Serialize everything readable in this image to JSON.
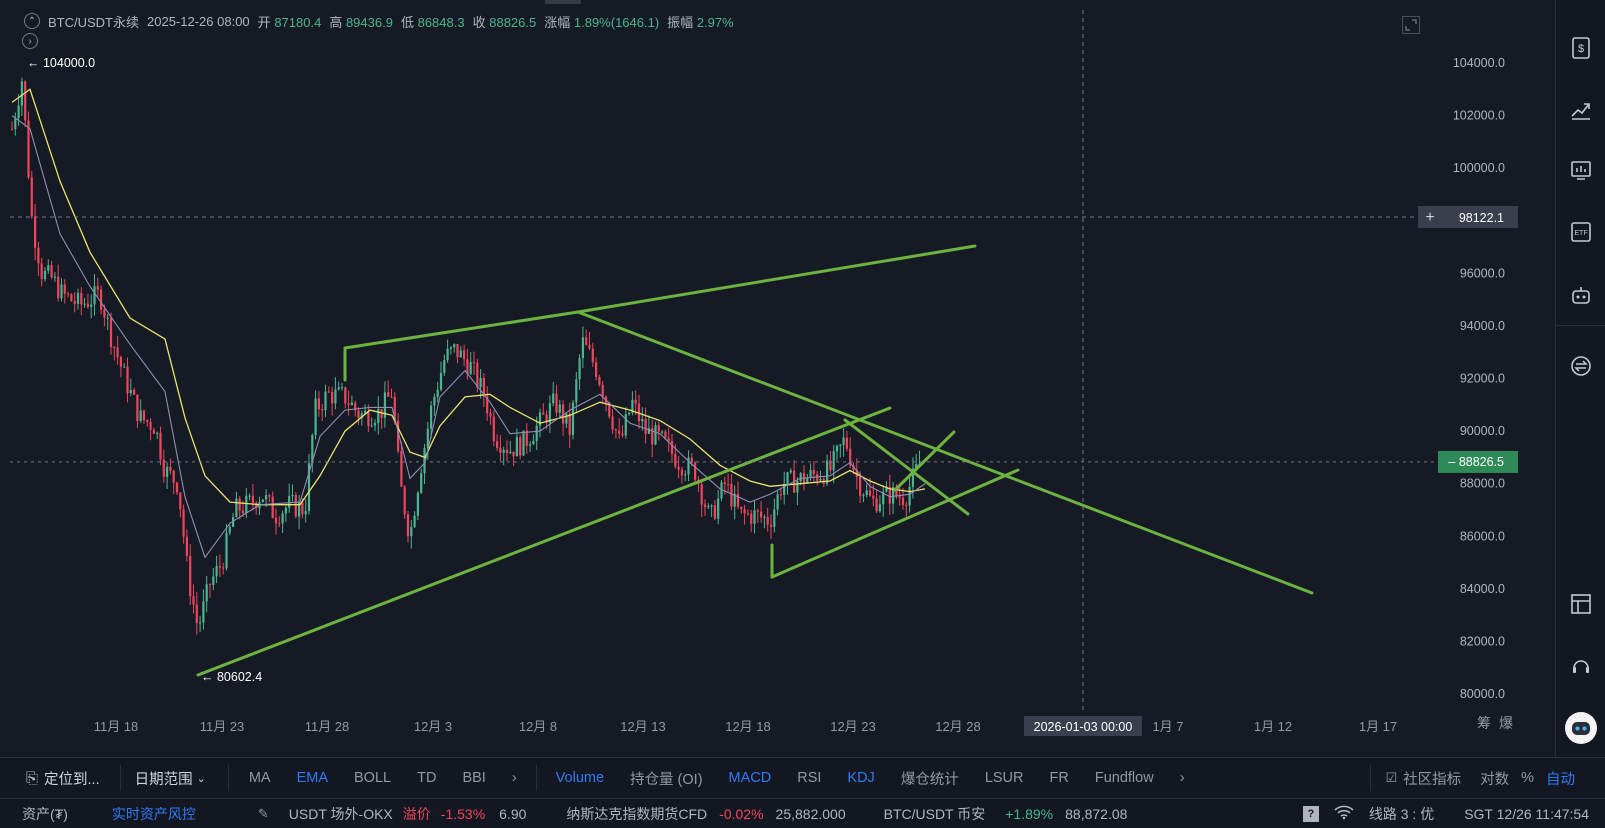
{
  "header": {
    "symbol": "BTC/USDT永续",
    "datetime": "2025-12-26 08:00",
    "open_label": "开",
    "open_value": "87180.4",
    "high_label": "高",
    "high_value": "89436.9",
    "low_label": "低",
    "low_value": "86848.3",
    "close_label": "收",
    "close_value": "88826.5",
    "change_label": "涨幅",
    "change_value": "1.89%(1646.1)",
    "amplitude_label": "振幅",
    "amplitude_value": "2.97%"
  },
  "price_axis": {
    "ticks": [
      "104000.0",
      "102000.0",
      "100000.0",
      "96000.0",
      "94000.0",
      "92000.0",
      "90000.0",
      "88000.0",
      "86000.0",
      "84000.0",
      "82000.0",
      "80000.0"
    ],
    "crosshair_price": "98122.1",
    "last_price": "88826.5"
  },
  "time_axis": {
    "ticks": [
      "11月 18",
      "11月 23",
      "11月 28",
      "12月 3",
      "12月 8",
      "12月 13",
      "12月 18",
      "12月 23",
      "12月 28",
      "1月 7",
      "1月 12",
      "1月 17"
    ],
    "crosshair_time": "2026-01-03 00:00",
    "right_labels": [
      "筹",
      "爆"
    ]
  },
  "annotations": {
    "high_marker": "← 104000.0",
    "low_marker": "← 80602.4"
  },
  "colors": {
    "up": "#4bb58f",
    "down": "#f0455a",
    "trendline": "#6db33f",
    "ma_yellow": "#e8e36a",
    "ma_gray": "#8f8fb0",
    "accent": "#2f7bf6"
  },
  "bottom_toolbar": {
    "goto_label": "定位到...",
    "range_label": "日期范围",
    "indicators": [
      "MA",
      "EMA",
      "BOLL",
      "TD",
      "BBI"
    ],
    "sub_indicators": [
      "Volume",
      "持仓量 (OI)",
      "MACD",
      "RSI",
      "KDJ",
      "爆仓统计",
      "LSUR",
      "FR",
      "Fundflow"
    ],
    "community_label": "社区指标",
    "log_label": "对数",
    "percent_label": "%",
    "auto_label": "自动"
  },
  "status_bar": {
    "assets_label": "资产(₮)",
    "risk_label": "实时资产风控",
    "ticker1_name": "USDT 场外-OKX",
    "ticker1_tag": "溢价",
    "ticker1_change": "-1.53%",
    "ticker1_value": "6.90",
    "ticker2_name": "纳斯达克指数期货CFD",
    "ticker2_change": "-0.02%",
    "ticker2_value": "25,882.000",
    "ticker3_name": "BTC/USDT 币安",
    "ticker3_change": "+1.89%",
    "ticker3_value": "88,872.08",
    "line_label": "线路 3 : 优",
    "time_label": "SGT  12/26 11:47:54"
  }
}
